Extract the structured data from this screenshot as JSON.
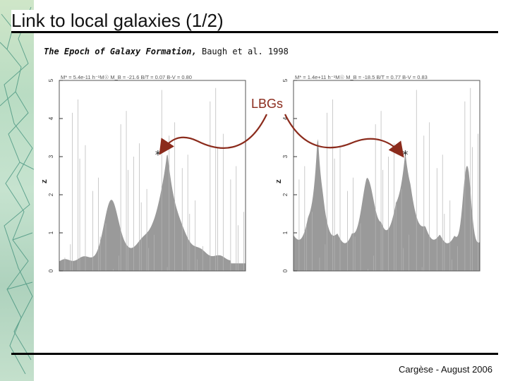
{
  "slide": {
    "title": "Link to local galaxies (1/2)",
    "citation_title": "The Epoch of Galaxy Formation,",
    "citation_rest": " Baugh et al. 1998",
    "footer": "Cargèse - August 2006",
    "callout": "LBGs"
  },
  "colors": {
    "accent": "#8b2b1c",
    "fill": "#9a9a9a",
    "strip": "#b9dcc3"
  },
  "chart_data": [
    {
      "type": "area",
      "header": "M* = 5.4e-11 h⁻¹M☉  M_B = -21.6  B/T = 0.07  B-V = 0.80",
      "ylabel": "z",
      "ylim": [
        0,
        5
      ],
      "yticks": [
        "0",
        "1",
        "2",
        "3",
        "4",
        "5"
      ],
      "marker_y": 3.05
    },
    {
      "type": "area",
      "header": "M* = 1.4e+11 h⁻¹M☉  M_B = -18.5  B/T = 0.77  B-V = 0.83",
      "ylabel": "z",
      "ylim": [
        0,
        5
      ],
      "yticks": [
        "0",
        "1",
        "2",
        "3",
        "4",
        "5"
      ],
      "marker_y": 3.05
    }
  ]
}
